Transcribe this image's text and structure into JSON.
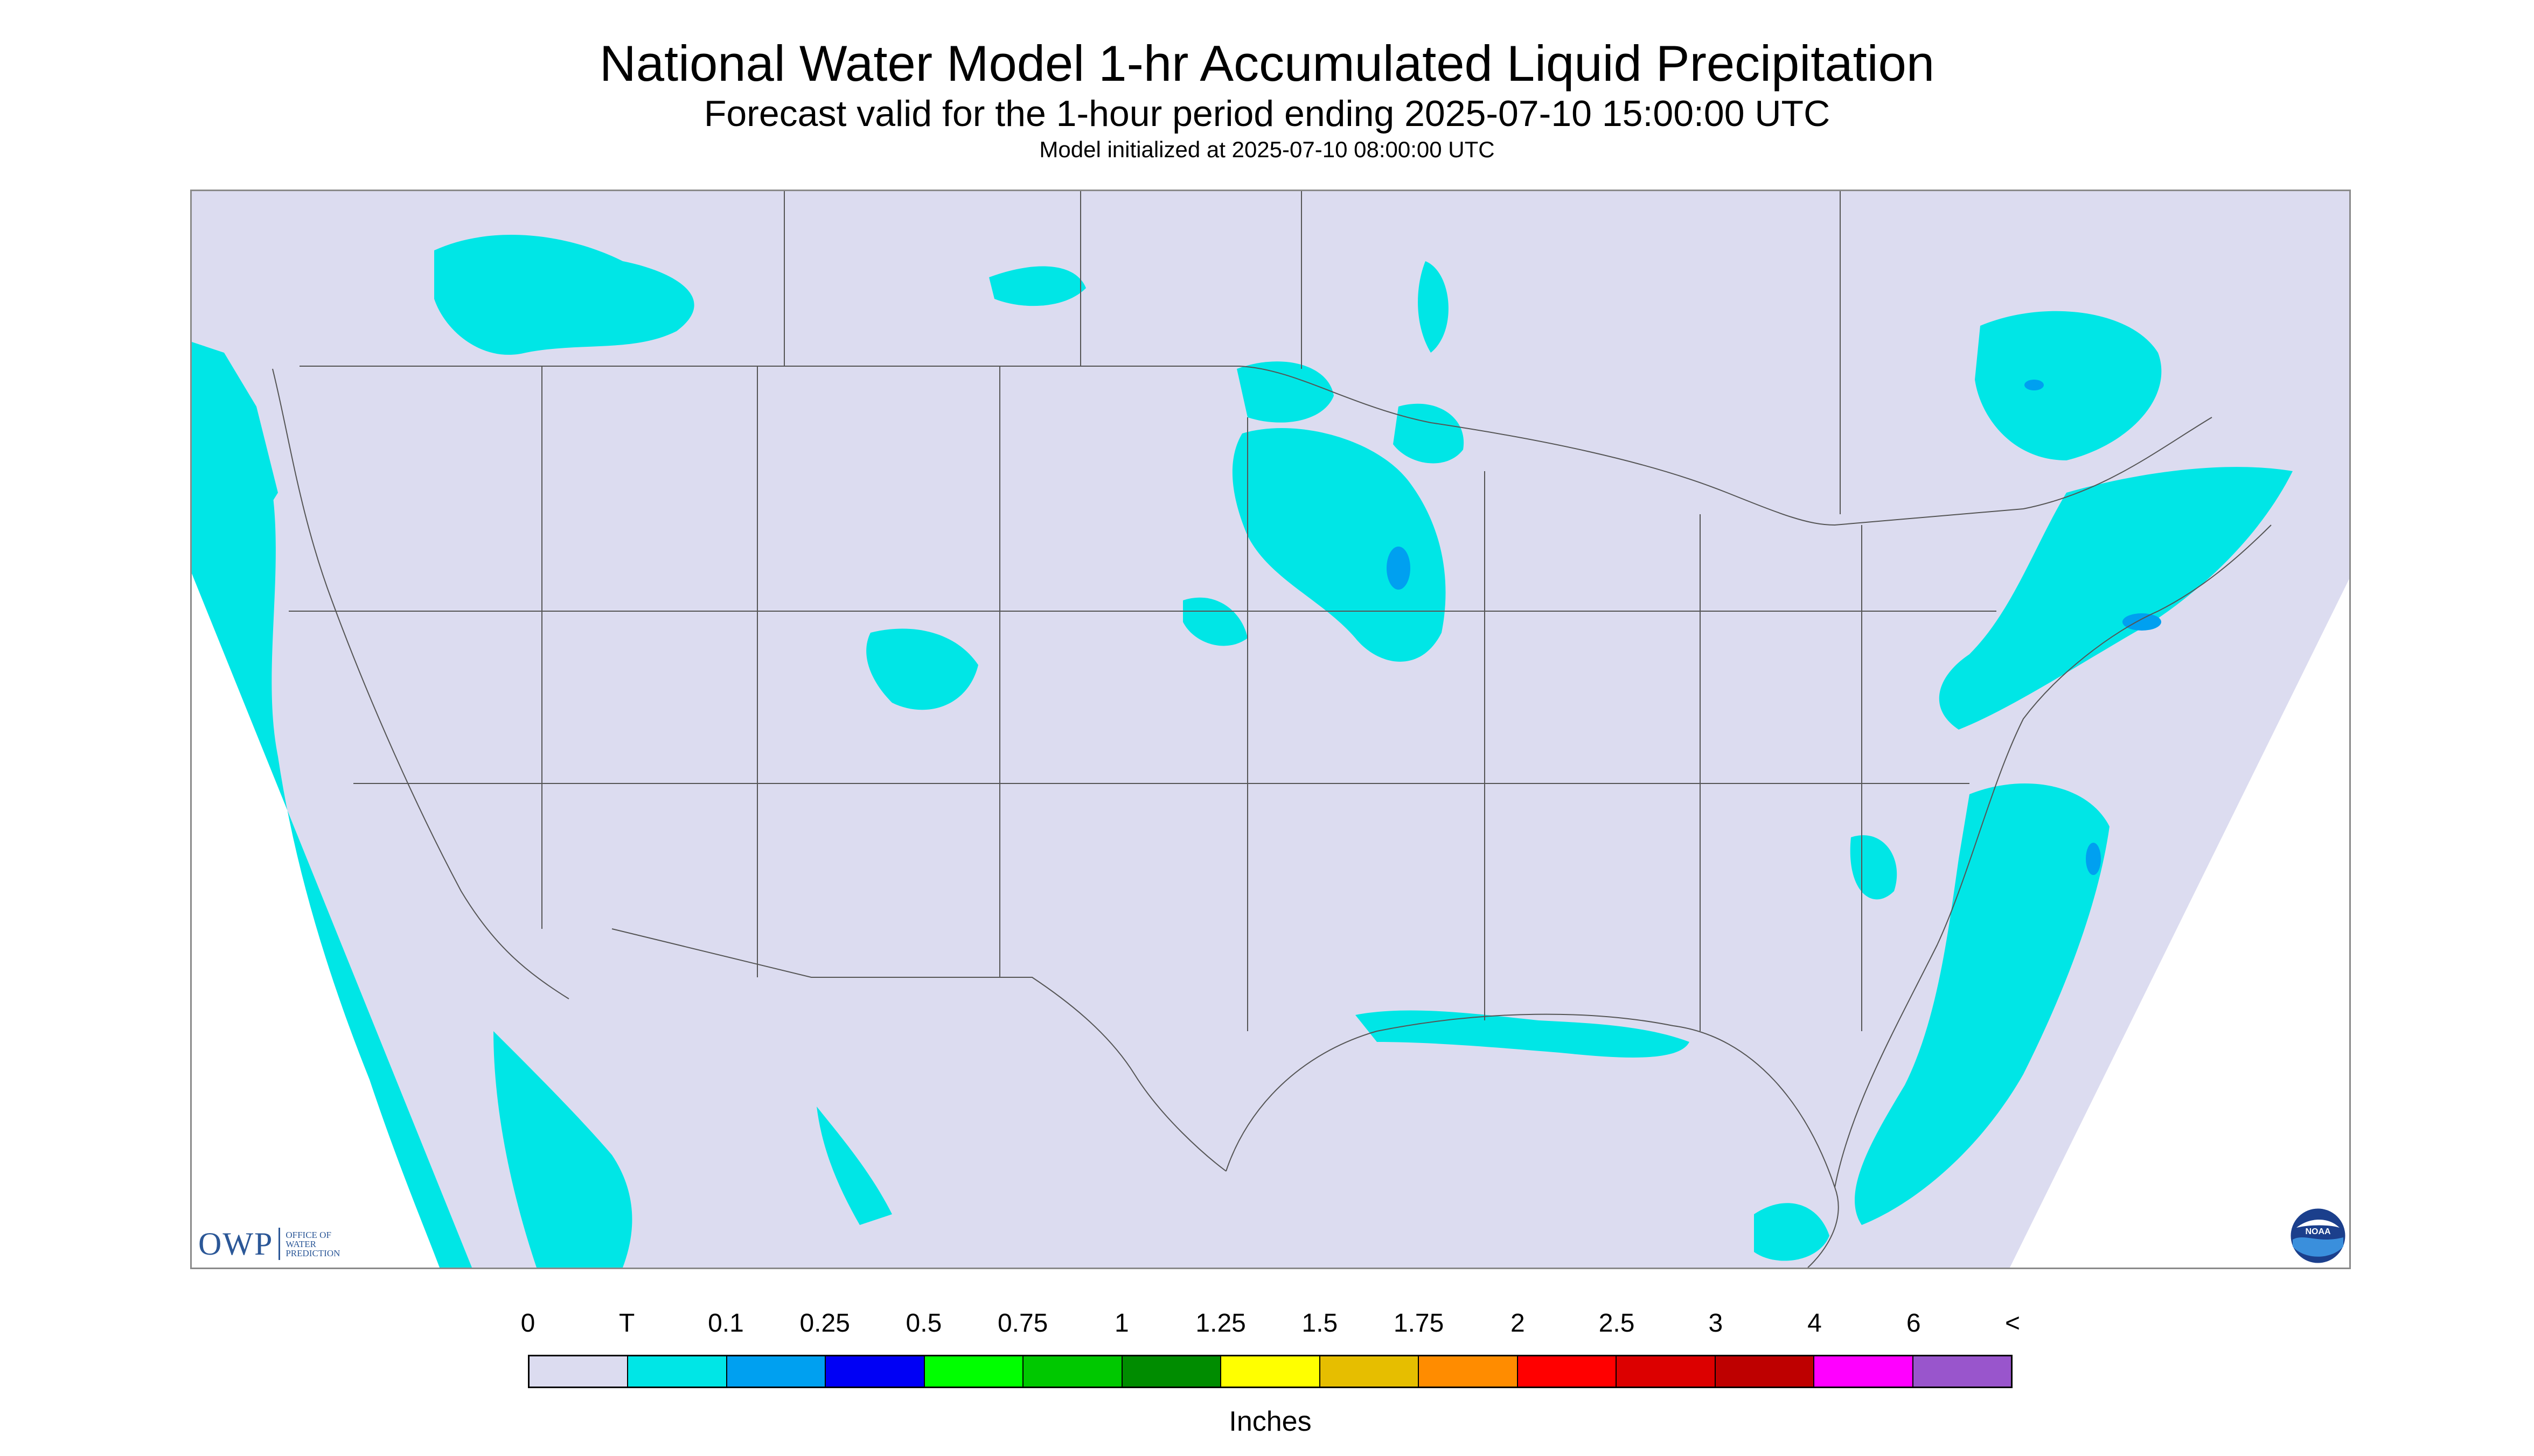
{
  "title": "National Water Model 1-hr Accumulated Liquid Precipitation",
  "subtitle": "Forecast valid for the 1-hour period ending 2025-07-10 15:00:00 UTC",
  "init_text": "Model initialized at 2025-07-10 08:00:00 UTC",
  "logo": {
    "owp_letters": "OWP",
    "owp_sub": "OFFICE OF WATER PREDICTION",
    "noaa_text": "NOAA"
  },
  "colors": {
    "no_precip": "#dcdcf0",
    "outside": "#ffffff",
    "boundary": "#555555"
  },
  "legend": {
    "labels": [
      "0",
      "T",
      "0.1",
      "0.25",
      "0.5",
      "0.75",
      "1",
      "1.25",
      "1.5",
      "1.75",
      "2",
      "2.5",
      "3",
      "4",
      "6",
      "<"
    ],
    "colors": [
      "#dcdcf0",
      "#00e6e6",
      "#00a0f0",
      "#0000f5",
      "#00ff00",
      "#00c800",
      "#008c00",
      "#ffff00",
      "#e6be00",
      "#ff8c00",
      "#ff0000",
      "#dc0000",
      "#be0000",
      "#ff00ff",
      "#9955cc"
    ],
    "units": "Inches"
  }
}
